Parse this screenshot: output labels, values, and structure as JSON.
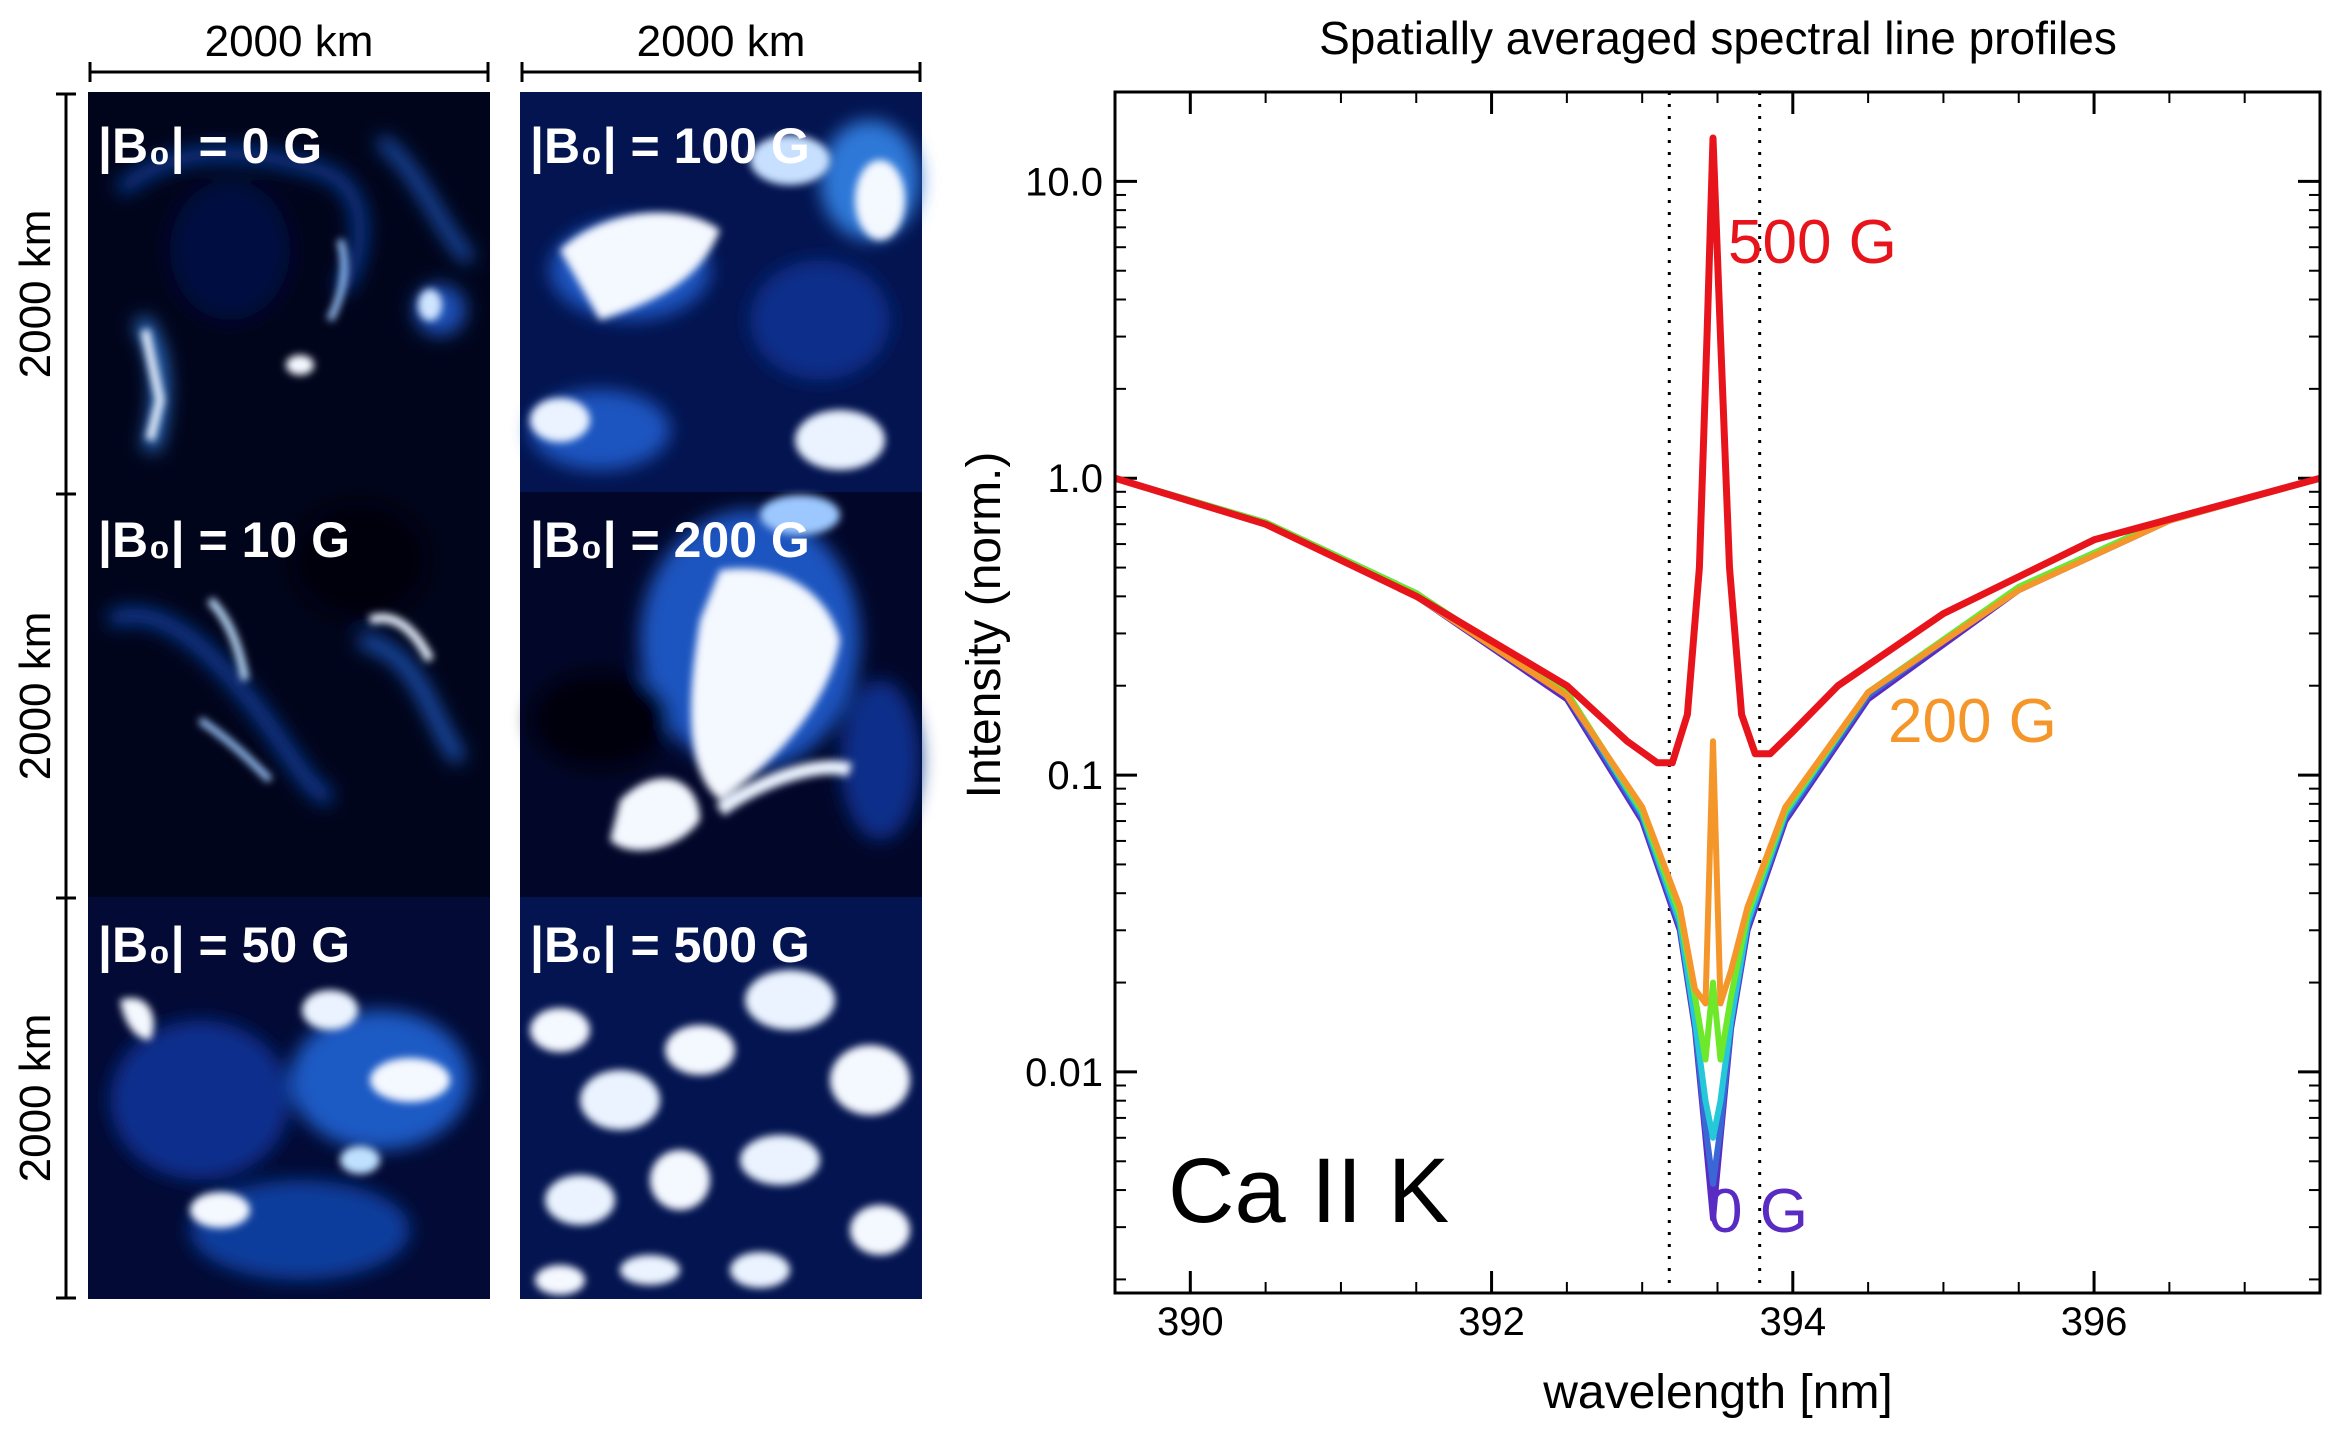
{
  "left_panel": {
    "scale_label": "2000 km",
    "tiles": [
      {
        "label": "|B₀| = 0 G",
        "field_gauss": 0
      },
      {
        "label": "|B₀| = 100 G",
        "field_gauss": 100
      },
      {
        "label": "|B₀| = 10 G",
        "field_gauss": 10
      },
      {
        "label": "|B₀| = 200 G",
        "field_gauss": 200
      },
      {
        "label": "|B₀| = 50 G",
        "field_gauss": 50
      },
      {
        "label": "|B₀| = 500 G",
        "field_gauss": 500
      }
    ]
  },
  "colors": {
    "tile_dark": "#01051c",
    "tile_blue": "#0a3d9c",
    "tile_bright": "#f4f8ff",
    "red": "#e8141c",
    "orange": "#f5962a",
    "green": "#6ee82a",
    "cyan": "#24c8d8",
    "blue": "#3a66d6",
    "violet": "#5a2bc2"
  },
  "chart_data": {
    "type": "line",
    "title": "Spatially averaged spectral line profiles",
    "xlabel": "wavelength [nm]",
    "ylabel": "Intensity (norm.)",
    "xlim": [
      389.5,
      397.5
    ],
    "ylim": [
      0.0018,
      20
    ],
    "yscale": "log",
    "xticks": [
      "390",
      "392",
      "394",
      "396"
    ],
    "yticks": [
      "0.01",
      "0.1",
      "1.0",
      "10.0"
    ],
    "ytick_values": [
      0.01,
      0.1,
      1.0,
      10.0
    ],
    "line_label": "Ca II K",
    "line_core_nm": 393.47,
    "dotted_markers_nm": [
      393.18,
      393.78
    ],
    "annotations": [
      "500 G",
      "200 G",
      "0 G"
    ],
    "series": [
      {
        "name": "0 G",
        "field_gauss": 0,
        "color": "#5a2bc2",
        "x": [
          389.5,
          390.5,
          391.5,
          392.5,
          393.0,
          393.25,
          393.35,
          393.42,
          393.47,
          393.52,
          393.59,
          393.7,
          393.95,
          394.5,
          395.5,
          396.5,
          397.5
        ],
        "y": [
          1.0,
          0.7,
          0.4,
          0.18,
          0.07,
          0.03,
          0.014,
          0.006,
          0.0032,
          0.006,
          0.014,
          0.03,
          0.07,
          0.18,
          0.42,
          0.72,
          1.0
        ]
      },
      {
        "name": "10 G",
        "field_gauss": 10,
        "color": "#3a66d6",
        "x": [
          389.5,
          390.5,
          391.5,
          392.5,
          393.0,
          393.25,
          393.35,
          393.42,
          393.47,
          393.52,
          393.59,
          393.7,
          393.95,
          394.5,
          395.5,
          396.5,
          397.5
        ],
        "y": [
          1.0,
          0.71,
          0.41,
          0.185,
          0.072,
          0.031,
          0.0145,
          0.0065,
          0.0042,
          0.0065,
          0.0145,
          0.031,
          0.072,
          0.185,
          0.43,
          0.73,
          1.0
        ]
      },
      {
        "name": "50 G",
        "field_gauss": 50,
        "color": "#24c8d8",
        "x": [
          389.5,
          390.5,
          391.5,
          392.5,
          393.0,
          393.25,
          393.35,
          393.42,
          393.47,
          393.52,
          393.59,
          393.7,
          393.95,
          394.5,
          395.5,
          396.5,
          397.5
        ],
        "y": [
          1.0,
          0.71,
          0.41,
          0.19,
          0.074,
          0.032,
          0.015,
          0.008,
          0.006,
          0.008,
          0.015,
          0.032,
          0.074,
          0.19,
          0.43,
          0.73,
          1.0
        ]
      },
      {
        "name": "100 G",
        "field_gauss": 100,
        "color": "#6ee82a",
        "x": [
          389.5,
          390.5,
          391.5,
          392.5,
          393.0,
          393.25,
          393.35,
          393.42,
          393.47,
          393.52,
          393.59,
          393.7,
          393.95,
          394.5,
          395.5,
          396.5,
          397.5
        ],
        "y": [
          1.0,
          0.71,
          0.41,
          0.19,
          0.076,
          0.034,
          0.018,
          0.011,
          0.02,
          0.011,
          0.018,
          0.034,
          0.076,
          0.19,
          0.43,
          0.73,
          1.0
        ]
      },
      {
        "name": "200 G",
        "field_gauss": 200,
        "color": "#f5962a",
        "x": [
          389.5,
          390.5,
          391.5,
          392.5,
          393.0,
          393.25,
          393.35,
          393.42,
          393.47,
          393.52,
          393.59,
          393.7,
          393.95,
          394.5,
          395.5,
          396.5,
          397.5
        ],
        "y": [
          1.0,
          0.7,
          0.4,
          0.185,
          0.078,
          0.036,
          0.019,
          0.017,
          0.13,
          0.017,
          0.022,
          0.036,
          0.078,
          0.19,
          0.42,
          0.72,
          1.0
        ]
      },
      {
        "name": "500 G",
        "field_gauss": 500,
        "color": "#e8141c",
        "x": [
          389.5,
          390.5,
          391.5,
          392.5,
          392.9,
          393.1,
          393.2,
          393.3,
          393.38,
          393.43,
          393.47,
          393.52,
          393.58,
          393.66,
          393.75,
          393.85,
          394.0,
          394.3,
          395.0,
          396.0,
          397.5
        ],
        "y": [
          1.0,
          0.7,
          0.4,
          0.2,
          0.13,
          0.11,
          0.11,
          0.16,
          0.5,
          3.0,
          14.0,
          3.0,
          0.5,
          0.16,
          0.118,
          0.118,
          0.14,
          0.2,
          0.35,
          0.62,
          1.0
        ]
      }
    ]
  }
}
